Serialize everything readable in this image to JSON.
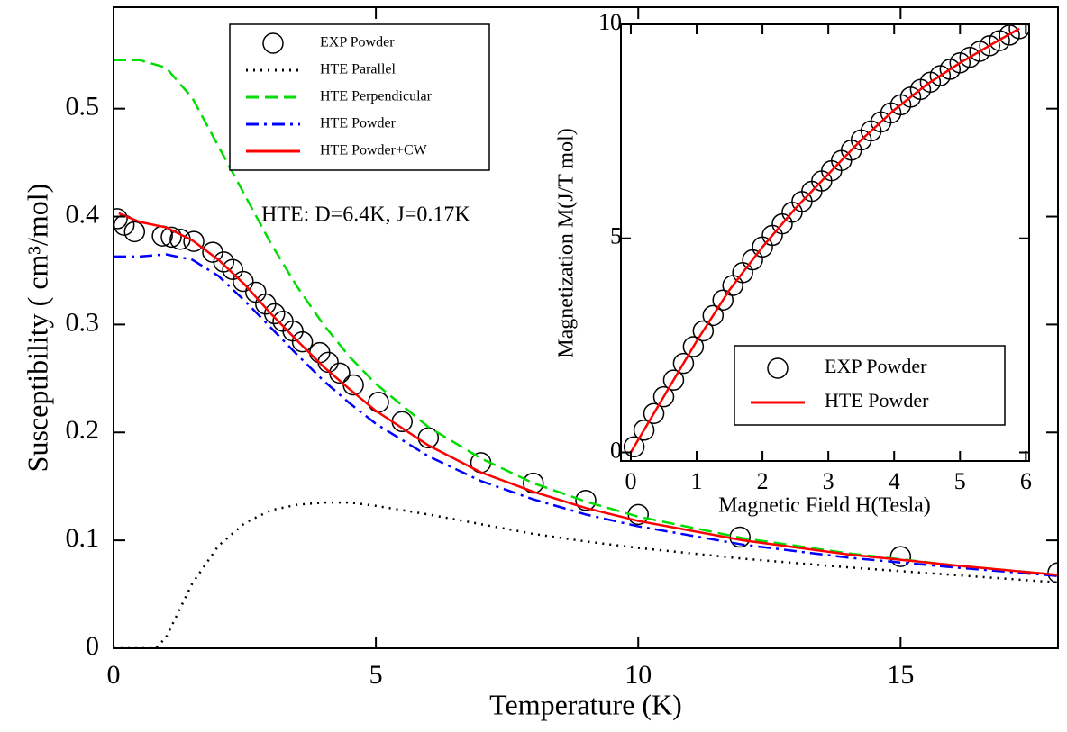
{
  "chart_data": [
    {
      "type": "line",
      "xlabel": "Temperature (K)",
      "ylabel": "Susceptibility ( cm³/mol)",
      "annotation": "HTE: D=6.4K, J=0.17K",
      "xlim": [
        0,
        18
      ],
      "ylim": [
        0,
        0.594
      ],
      "xticks": [
        0,
        5,
        10,
        15
      ],
      "yticks": [
        0,
        0.1,
        0.2,
        0.3,
        0.4,
        0.5
      ],
      "legend": "upper left",
      "series": [
        {
          "name": "EXP Powder",
          "color": "#000000",
          "style": "circle",
          "x": [
            0.07,
            0.2,
            0.4,
            0.93,
            1.1,
            1.27,
            1.53,
            1.89,
            2.1,
            2.27,
            2.47,
            2.71,
            2.9,
            3.07,
            3.23,
            3.42,
            3.6,
            3.93,
            4.09,
            4.31,
            4.57,
            5.05,
            5.5,
            6.0,
            7.0,
            8.0,
            9.0,
            10.0,
            11.94,
            15.0,
            18.0
          ],
          "values": [
            0.398,
            0.392,
            0.386,
            0.382,
            0.381,
            0.379,
            0.377,
            0.367,
            0.358,
            0.351,
            0.34,
            0.33,
            0.319,
            0.31,
            0.303,
            0.294,
            0.284,
            0.274,
            0.265,
            0.255,
            0.244,
            0.228,
            0.21,
            0.195,
            0.172,
            0.153,
            0.137,
            0.124,
            0.103,
            0.085,
            0.07
          ]
        },
        {
          "name": "HTE Parallel",
          "color": "#000000",
          "style": "dotted",
          "x": [
            0,
            0.8,
            1.0,
            1.5,
            2,
            2.5,
            3,
            3.5,
            4,
            4.5,
            5,
            6,
            7,
            8,
            9,
            10,
            12,
            14,
            16,
            18
          ],
          "values": [
            0,
            0,
            0.01,
            0.06,
            0.095,
            0.116,
            0.128,
            0.133,
            0.135,
            0.135,
            0.132,
            0.124,
            0.115,
            0.106,
            0.099,
            0.093,
            0.083,
            0.075,
            0.068,
            0.061
          ]
        },
        {
          "name": "HTE Perpendicular",
          "color": "#00dd00",
          "style": "dashed",
          "x": [
            0,
            0.5,
            1,
            1.5,
            2,
            2.5,
            3,
            3.5,
            4,
            4.5,
            5,
            6,
            7,
            8,
            9,
            10,
            12,
            14,
            16,
            18
          ],
          "values": [
            0.545,
            0.545,
            0.538,
            0.51,
            0.465,
            0.42,
            0.375,
            0.335,
            0.3,
            0.27,
            0.245,
            0.205,
            0.176,
            0.153,
            0.136,
            0.122,
            0.102,
            0.088,
            0.077,
            0.068
          ]
        },
        {
          "name": "HTE Powder",
          "color": "#0000ff",
          "style": "dashdot",
          "x": [
            0,
            0.5,
            1,
            1.5,
            2,
            2.5,
            3,
            3.5,
            4,
            4.5,
            5,
            6,
            7,
            8,
            9,
            10,
            12,
            14,
            16,
            18
          ],
          "values": [
            0.363,
            0.363,
            0.365,
            0.36,
            0.345,
            0.322,
            0.297,
            0.272,
            0.248,
            0.227,
            0.208,
            0.178,
            0.155,
            0.138,
            0.124,
            0.113,
            0.096,
            0.084,
            0.075,
            0.067
          ]
        },
        {
          "name": "HTE Powder+CW",
          "color": "#ff0000",
          "style": "solid",
          "x": [
            0.1,
            0.5,
            1,
            1.5,
            2,
            2.5,
            3,
            3.5,
            4,
            4.5,
            5,
            6,
            7,
            8,
            9,
            10,
            12,
            14,
            16,
            18
          ],
          "values": [
            0.403,
            0.395,
            0.39,
            0.378,
            0.36,
            0.337,
            0.31,
            0.285,
            0.261,
            0.24,
            0.22,
            0.188,
            0.163,
            0.145,
            0.13,
            0.118,
            0.1,
            0.087,
            0.077,
            0.068
          ]
        }
      ]
    },
    {
      "type": "line",
      "xlabel": "Magnetic Field H(Tesla)",
      "ylabel": "Magnetization M(J/T mol)",
      "xlim": [
        -0.15,
        6.05
      ],
      "ylim": [
        -0.2,
        10
      ],
      "xticks": [
        0,
        1,
        2,
        3,
        4,
        5,
        6
      ],
      "yticks": [
        0,
        5,
        10
      ],
      "legend": "lower right",
      "series": [
        {
          "name": "EXP Powder",
          "color": "#000000",
          "style": "circle",
          "x": [
            0.05,
            0.2,
            0.35,
            0.5,
            0.65,
            0.8,
            0.95,
            1.1,
            1.25,
            1.4,
            1.55,
            1.7,
            1.85,
            2.0,
            2.15,
            2.3,
            2.45,
            2.6,
            2.75,
            2.9,
            3.05,
            3.2,
            3.35,
            3.5,
            3.65,
            3.8,
            3.95,
            4.1,
            4.25,
            4.4,
            4.55,
            4.7,
            4.85,
            5.0,
            5.15,
            5.3,
            5.45,
            5.6,
            5.75,
            5.9
          ],
          "values": [
            0.13,
            0.52,
            0.91,
            1.3,
            1.69,
            2.08,
            2.47,
            2.84,
            3.2,
            3.56,
            3.9,
            4.2,
            4.5,
            4.8,
            5.07,
            5.34,
            5.61,
            5.86,
            6.1,
            6.34,
            6.58,
            6.82,
            7.06,
            7.3,
            7.51,
            7.72,
            7.93,
            8.12,
            8.3,
            8.48,
            8.65,
            8.8,
            8.95,
            9.1,
            9.23,
            9.37,
            9.5,
            9.62,
            9.75,
            9.9
          ]
        },
        {
          "name": "HTE Powder",
          "color": "#ff0000",
          "style": "solid",
          "x": [
            0,
            0.5,
            1,
            1.5,
            2,
            2.5,
            3,
            3.5,
            4,
            4.5,
            5,
            5.5,
            5.9
          ],
          "values": [
            0,
            1.3,
            2.6,
            3.8,
            4.8,
            5.7,
            6.5,
            7.3,
            8.0,
            8.6,
            9.1,
            9.55,
            9.9
          ]
        }
      ]
    }
  ]
}
